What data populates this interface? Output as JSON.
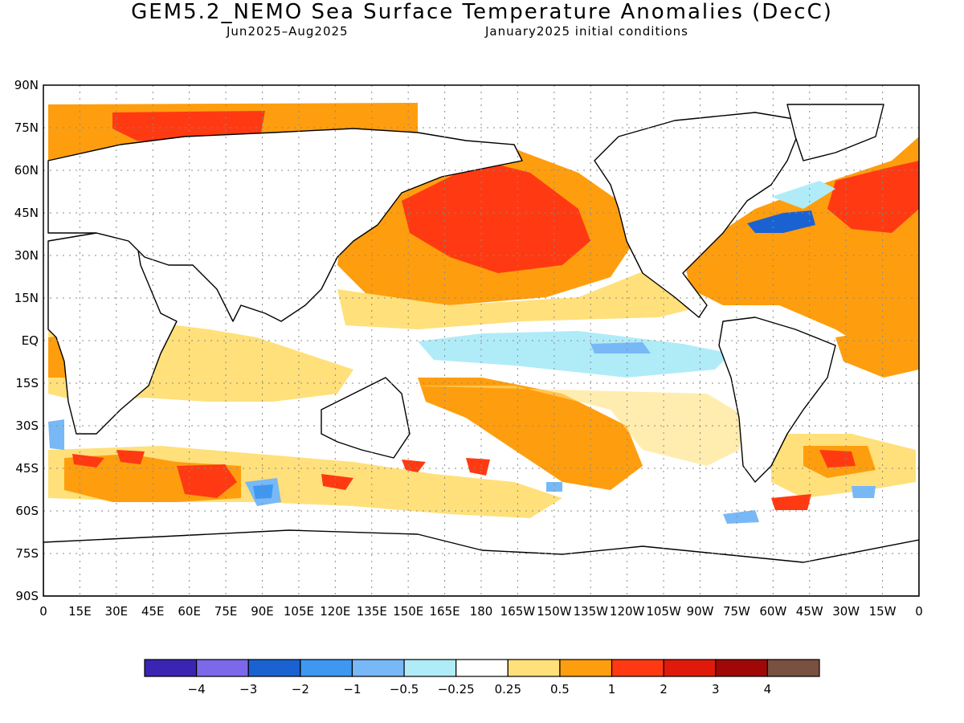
{
  "title": "GEM5.2_NEMO Sea Surface Temperature Anomalies (DecC)",
  "subtitle_period": "Jun2025–Aug2025",
  "subtitle_init": "January2025 initial conditions",
  "map": {
    "lat_labels": [
      "90N",
      "75N",
      "60N",
      "45N",
      "30N",
      "15N",
      "EQ",
      "15S",
      "30S",
      "45S",
      "60S",
      "75S",
      "90S"
    ],
    "lon_labels": [
      "0",
      "15E",
      "30E",
      "45E",
      "60E",
      "75E",
      "90E",
      "105E",
      "120E",
      "135E",
      "150E",
      "165E",
      "180",
      "165W",
      "150W",
      "135W",
      "120W",
      "105W",
      "90W",
      "75W",
      "60W",
      "45W",
      "30W",
      "15W",
      "0"
    ],
    "grid": true,
    "projection": "cylindrical-equidistant"
  },
  "legend": {
    "colors": [
      "#3a24b4",
      "#7c68ea",
      "#1a62d2",
      "#3e98f2",
      "#78b8f6",
      "#b0ecf8",
      "#ffffff",
      "#ffe07a",
      "#fe9e0e",
      "#ff3a12",
      "#e01a0a",
      "#a00808",
      "#7a5040"
    ],
    "tick_labels": [
      "−4",
      "−3",
      "−2",
      "−1",
      "−0.5",
      "−0.25",
      "0.25",
      "0.5",
      "1",
      "2",
      "3",
      "4"
    ]
  }
}
